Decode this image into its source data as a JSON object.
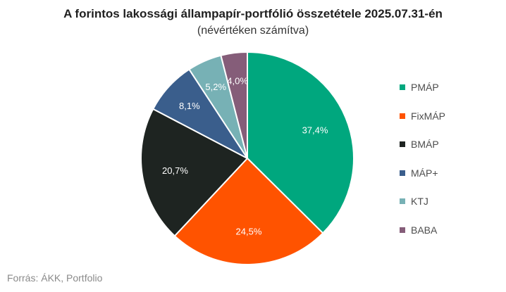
{
  "header": {
    "title": "A forintos lakossági állampapír-portfólió összetétele 2025.07.31-én",
    "subtitle": "(névértéken számítva)"
  },
  "footer": {
    "source": "Forrás: ÁKK, Portfolio"
  },
  "chart_data": {
    "type": "pie",
    "title": "A forintos lakossági állampapír-portfólió összetétele 2025.07.31-én",
    "subtitle": "(névértéken számítva)",
    "categories": [
      "PMÁP",
      "FixMÁP",
      "BMÁP",
      "MÁP+",
      "KTJ",
      "BABA"
    ],
    "values": [
      37.4,
      24.5,
      20.7,
      8.1,
      5.2,
      4.0
    ],
    "value_labels": [
      "37,4%",
      "24,5%",
      "20,7%",
      "8,1%",
      "5,2%",
      "4,0%"
    ],
    "colors": [
      "#00a77e",
      "#ff5300",
      "#1e2421",
      "#3a5e8c",
      "#77b1b5",
      "#855d79"
    ],
    "start_angle_deg": 0,
    "direction": "clockwise",
    "legend_position": "right"
  }
}
